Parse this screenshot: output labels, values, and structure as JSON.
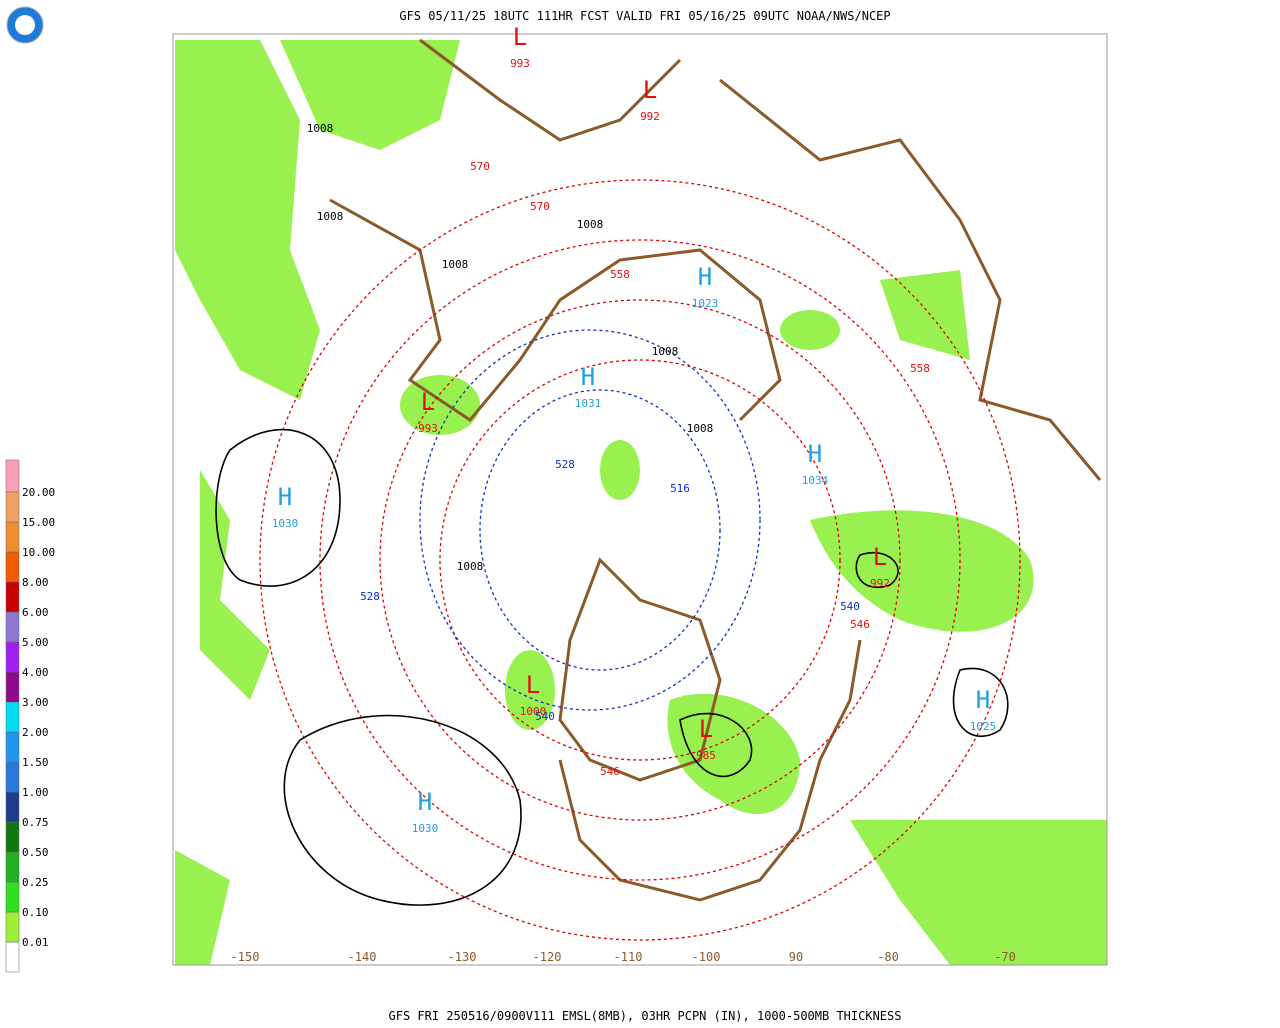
{
  "header": {
    "title": "GFS 05/11/25 18UTC 111HR FCST VALID FRI 05/16/25 09UTC NOAA/NWS/NCEP"
  },
  "footer": {
    "caption": "GFS FRI 250516/0900V111 EMSL(8MB), 03HR PCPN (IN), 1000-500MB THICKNESS"
  },
  "legend": [
    {
      "label": "0.01",
      "color": "#ffffff"
    },
    {
      "label": "0.10",
      "color": "#9cf035"
    },
    {
      "label": "0.25",
      "color": "#30e020"
    },
    {
      "label": "0.50",
      "color": "#20b020"
    },
    {
      "label": "0.75",
      "color": "#107810"
    },
    {
      "label": "1.00",
      "color": "#1e3c8c"
    },
    {
      "label": "1.50",
      "color": "#2878dc"
    },
    {
      "label": "2.00",
      "color": "#1e96f0"
    },
    {
      "label": "3.00",
      "color": "#00dcf0"
    },
    {
      "label": "4.00",
      "color": "#8c0a8c"
    },
    {
      "label": "5.00",
      "color": "#a020f0"
    },
    {
      "label": "6.00",
      "color": "#8c78d2"
    },
    {
      "label": "8.00",
      "color": "#c80000"
    },
    {
      "label": "10.00",
      "color": "#f05a00"
    },
    {
      "label": "15.00",
      "color": "#f08c32"
    },
    {
      "label": "20.00",
      "color": "#f0a064"
    }
  ],
  "longitudes": [
    "-150",
    "-140",
    "-130",
    "-120",
    "-110",
    "-100",
    "90",
    "-80",
    "-70"
  ],
  "centers": [
    {
      "symbol": "H",
      "value": "1030"
    },
    {
      "symbol": "H",
      "value": "1030"
    },
    {
      "symbol": "H",
      "value": "1031"
    },
    {
      "symbol": "H",
      "value": "1023"
    },
    {
      "symbol": "H",
      "value": "1034"
    },
    {
      "symbol": "H",
      "value": "1025"
    },
    {
      "symbol": "L",
      "value": "993"
    },
    {
      "symbol": "L",
      "value": "993"
    },
    {
      "symbol": "L",
      "value": "992"
    },
    {
      "symbol": "L",
      "value": "992"
    },
    {
      "symbol": "L",
      "value": "1000"
    },
    {
      "symbol": "L",
      "value": "985"
    }
  ],
  "contour_labels": [
    "1008",
    "1008",
    "1008",
    "1008",
    "1008",
    "1008",
    "1008",
    "570",
    "570",
    "558",
    "558",
    "546",
    "546",
    "540",
    "540",
    "528",
    "528",
    "516"
  ]
}
